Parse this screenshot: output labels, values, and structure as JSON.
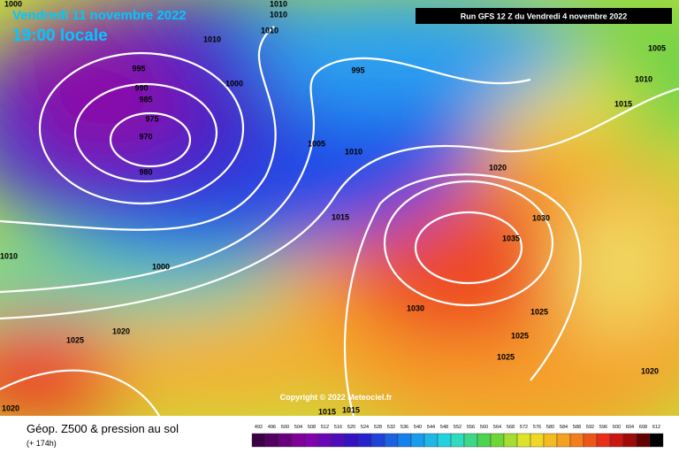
{
  "header": {
    "date": "Vendredi 11 novembre 2022",
    "time": "19:00 locale",
    "run": "Run GFS 12 Z du Vendredi 4 novembre 2022"
  },
  "map": {
    "isobar_labels": [
      "1000",
      "1010",
      "1010",
      "1010",
      "1010",
      "995",
      "990",
      "985",
      "975",
      "970",
      "980",
      "1000",
      "995",
      "1005",
      "1010",
      "1015",
      "1005",
      "1010",
      "1020",
      "1015",
      "1030",
      "1035",
      "1010",
      "1000",
      "1030",
      "1025",
      "1025",
      "1020",
      "1025",
      "1025",
      "1020",
      "1020",
      "1015",
      "1015"
    ],
    "copyright": "Copyright © 2022 Meteociel.fr"
  },
  "footer": {
    "title": "Géop. Z500 & pression au sol",
    "lead": "(+ 174h)",
    "scale": [
      492,
      496,
      500,
      504,
      508,
      512,
      516,
      520,
      524,
      528,
      532,
      536,
      540,
      544,
      548,
      552,
      556,
      560,
      564,
      568,
      572,
      576,
      580,
      584,
      588,
      592,
      596,
      600,
      604,
      608,
      612
    ]
  }
}
